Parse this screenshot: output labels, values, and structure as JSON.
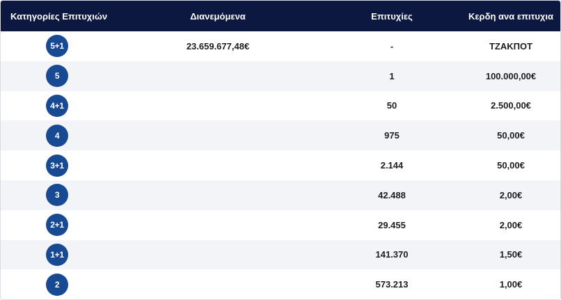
{
  "header": {
    "category": "Κατηγορίες Επιτυχιών",
    "distributed": "Διανεμόμενα",
    "winners": "Επιτυχίες",
    "prize": "Κερδη ανα επιτυχια"
  },
  "rows": [
    {
      "category": "5+1",
      "distributed": "23.659.677,48€",
      "winners": "-",
      "prize": "ΤΖΑΚΠΟΤ"
    },
    {
      "category": "5",
      "distributed": "",
      "winners": "1",
      "prize": "100.000,00€"
    },
    {
      "category": "4+1",
      "distributed": "",
      "winners": "50",
      "prize": "2.500,00€"
    },
    {
      "category": "4",
      "distributed": "",
      "winners": "975",
      "prize": "50,00€"
    },
    {
      "category": "3+1",
      "distributed": "",
      "winners": "2.144",
      "prize": "50,00€"
    },
    {
      "category": "3",
      "distributed": "",
      "winners": "42.488",
      "prize": "2,00€"
    },
    {
      "category": "2+1",
      "distributed": "",
      "winners": "29.455",
      "prize": "2,00€"
    },
    {
      "category": "1+1",
      "distributed": "",
      "winners": "141.370",
      "prize": "1,50€"
    },
    {
      "category": "2",
      "distributed": "",
      "winners": "573.213",
      "prize": "1,00€"
    }
  ],
  "colors": {
    "header_bg": "#0c1840",
    "badge_bg": "#184a93",
    "alt_row_bg": "#f3f4f7"
  }
}
